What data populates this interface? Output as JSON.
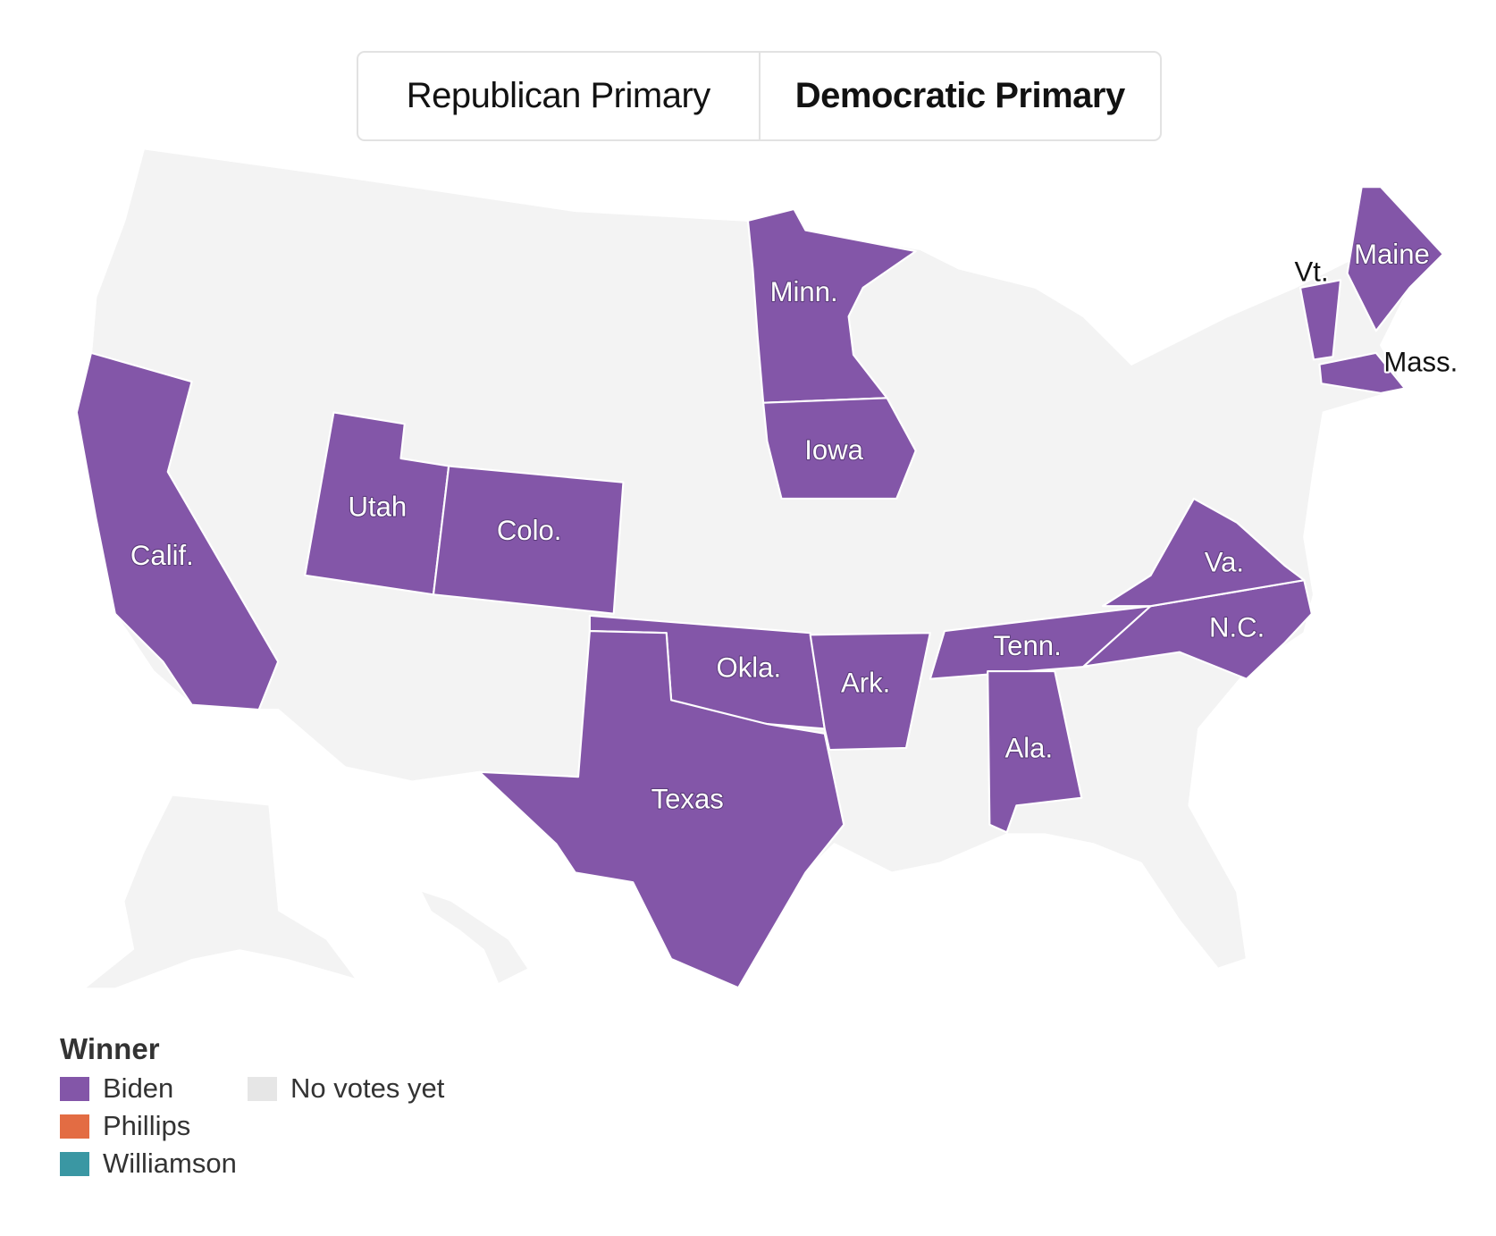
{
  "tabs": [
    {
      "label": "Republican Primary",
      "active": false
    },
    {
      "label": "Democratic Primary",
      "active": true
    }
  ],
  "map": {
    "colors": {
      "biden": "#8356a8",
      "no_votes": "#f3f3f3",
      "border": "#ffffff"
    },
    "states_won": {
      "Biden": [
        "Calif.",
        "Utah",
        "Colo.",
        "Minn.",
        "Iowa",
        "Okla.",
        "Texas",
        "Ark.",
        "Tenn.",
        "Ala.",
        "N.C.",
        "Va.",
        "Vt.",
        "Maine",
        "Mass."
      ]
    },
    "labels": {
      "calif": "Calif.",
      "utah": "Utah",
      "colo": "Colo.",
      "minn": "Minn.",
      "iowa": "Iowa",
      "okla": "Okla.",
      "texas": "Texas",
      "ark": "Ark.",
      "tenn": "Tenn.",
      "ala": "Ala.",
      "nc": "N.C.",
      "va": "Va.",
      "vt": "Vt.",
      "maine": "Maine",
      "mass": "Mass."
    }
  },
  "legend": {
    "title": "Winner",
    "items": [
      {
        "label": "Biden",
        "color": "#8356a8"
      },
      {
        "label": "No votes yet",
        "color": "#e6e6e6"
      },
      {
        "label": "Phillips",
        "color": "#e36c43"
      },
      {
        "label": "Williamson",
        "color": "#3a97a3"
      }
    ]
  }
}
